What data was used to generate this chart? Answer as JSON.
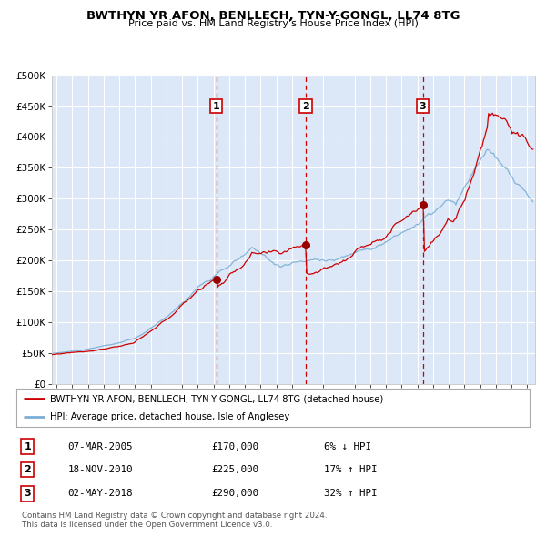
{
  "title": "BWTHYN YR AFON, BENLLECH, TYN-Y-GONGL, LL74 8TG",
  "subtitle": "Price paid vs. HM Land Registry's House Price Index (HPI)",
  "legend_label_red": "BWTHYN YR AFON, BENLLECH, TYN-Y-GONGL, LL74 8TG (detached house)",
  "legend_label_blue": "HPI: Average price, detached house, Isle of Anglesey",
  "footer1": "Contains HM Land Registry data © Crown copyright and database right 2024.",
  "footer2": "This data is licensed under the Open Government Licence v3.0.",
  "transactions": [
    {
      "num": 1,
      "date": "07-MAR-2005",
      "price": 170000,
      "pct": "6%",
      "dir": "↓",
      "x_year": 2005.18
    },
    {
      "num": 2,
      "date": "18-NOV-2010",
      "price": 225000,
      "pct": "17%",
      "dir": "↑",
      "x_year": 2010.88
    },
    {
      "num": 3,
      "date": "02-MAY-2018",
      "price": 290000,
      "pct": "32%",
      "dir": "↑",
      "x_year": 2018.34
    }
  ],
  "background_color": "#dce8f7",
  "grid_color": "#ffffff",
  "red_line_color": "#cc0000",
  "blue_line_color": "#7badd4",
  "dashed_line_color": "#cc0000",
  "ylim": [
    0,
    500000
  ],
  "yticks": [
    0,
    50000,
    100000,
    150000,
    200000,
    250000,
    300000,
    350000,
    400000,
    450000,
    500000
  ],
  "ytick_labels": [
    "£0",
    "£50K",
    "£100K",
    "£150K",
    "£200K",
    "£250K",
    "£300K",
    "£350K",
    "£400K",
    "£450K",
    "£500K"
  ],
  "xlim_start": 1994.7,
  "xlim_end": 2025.5
}
